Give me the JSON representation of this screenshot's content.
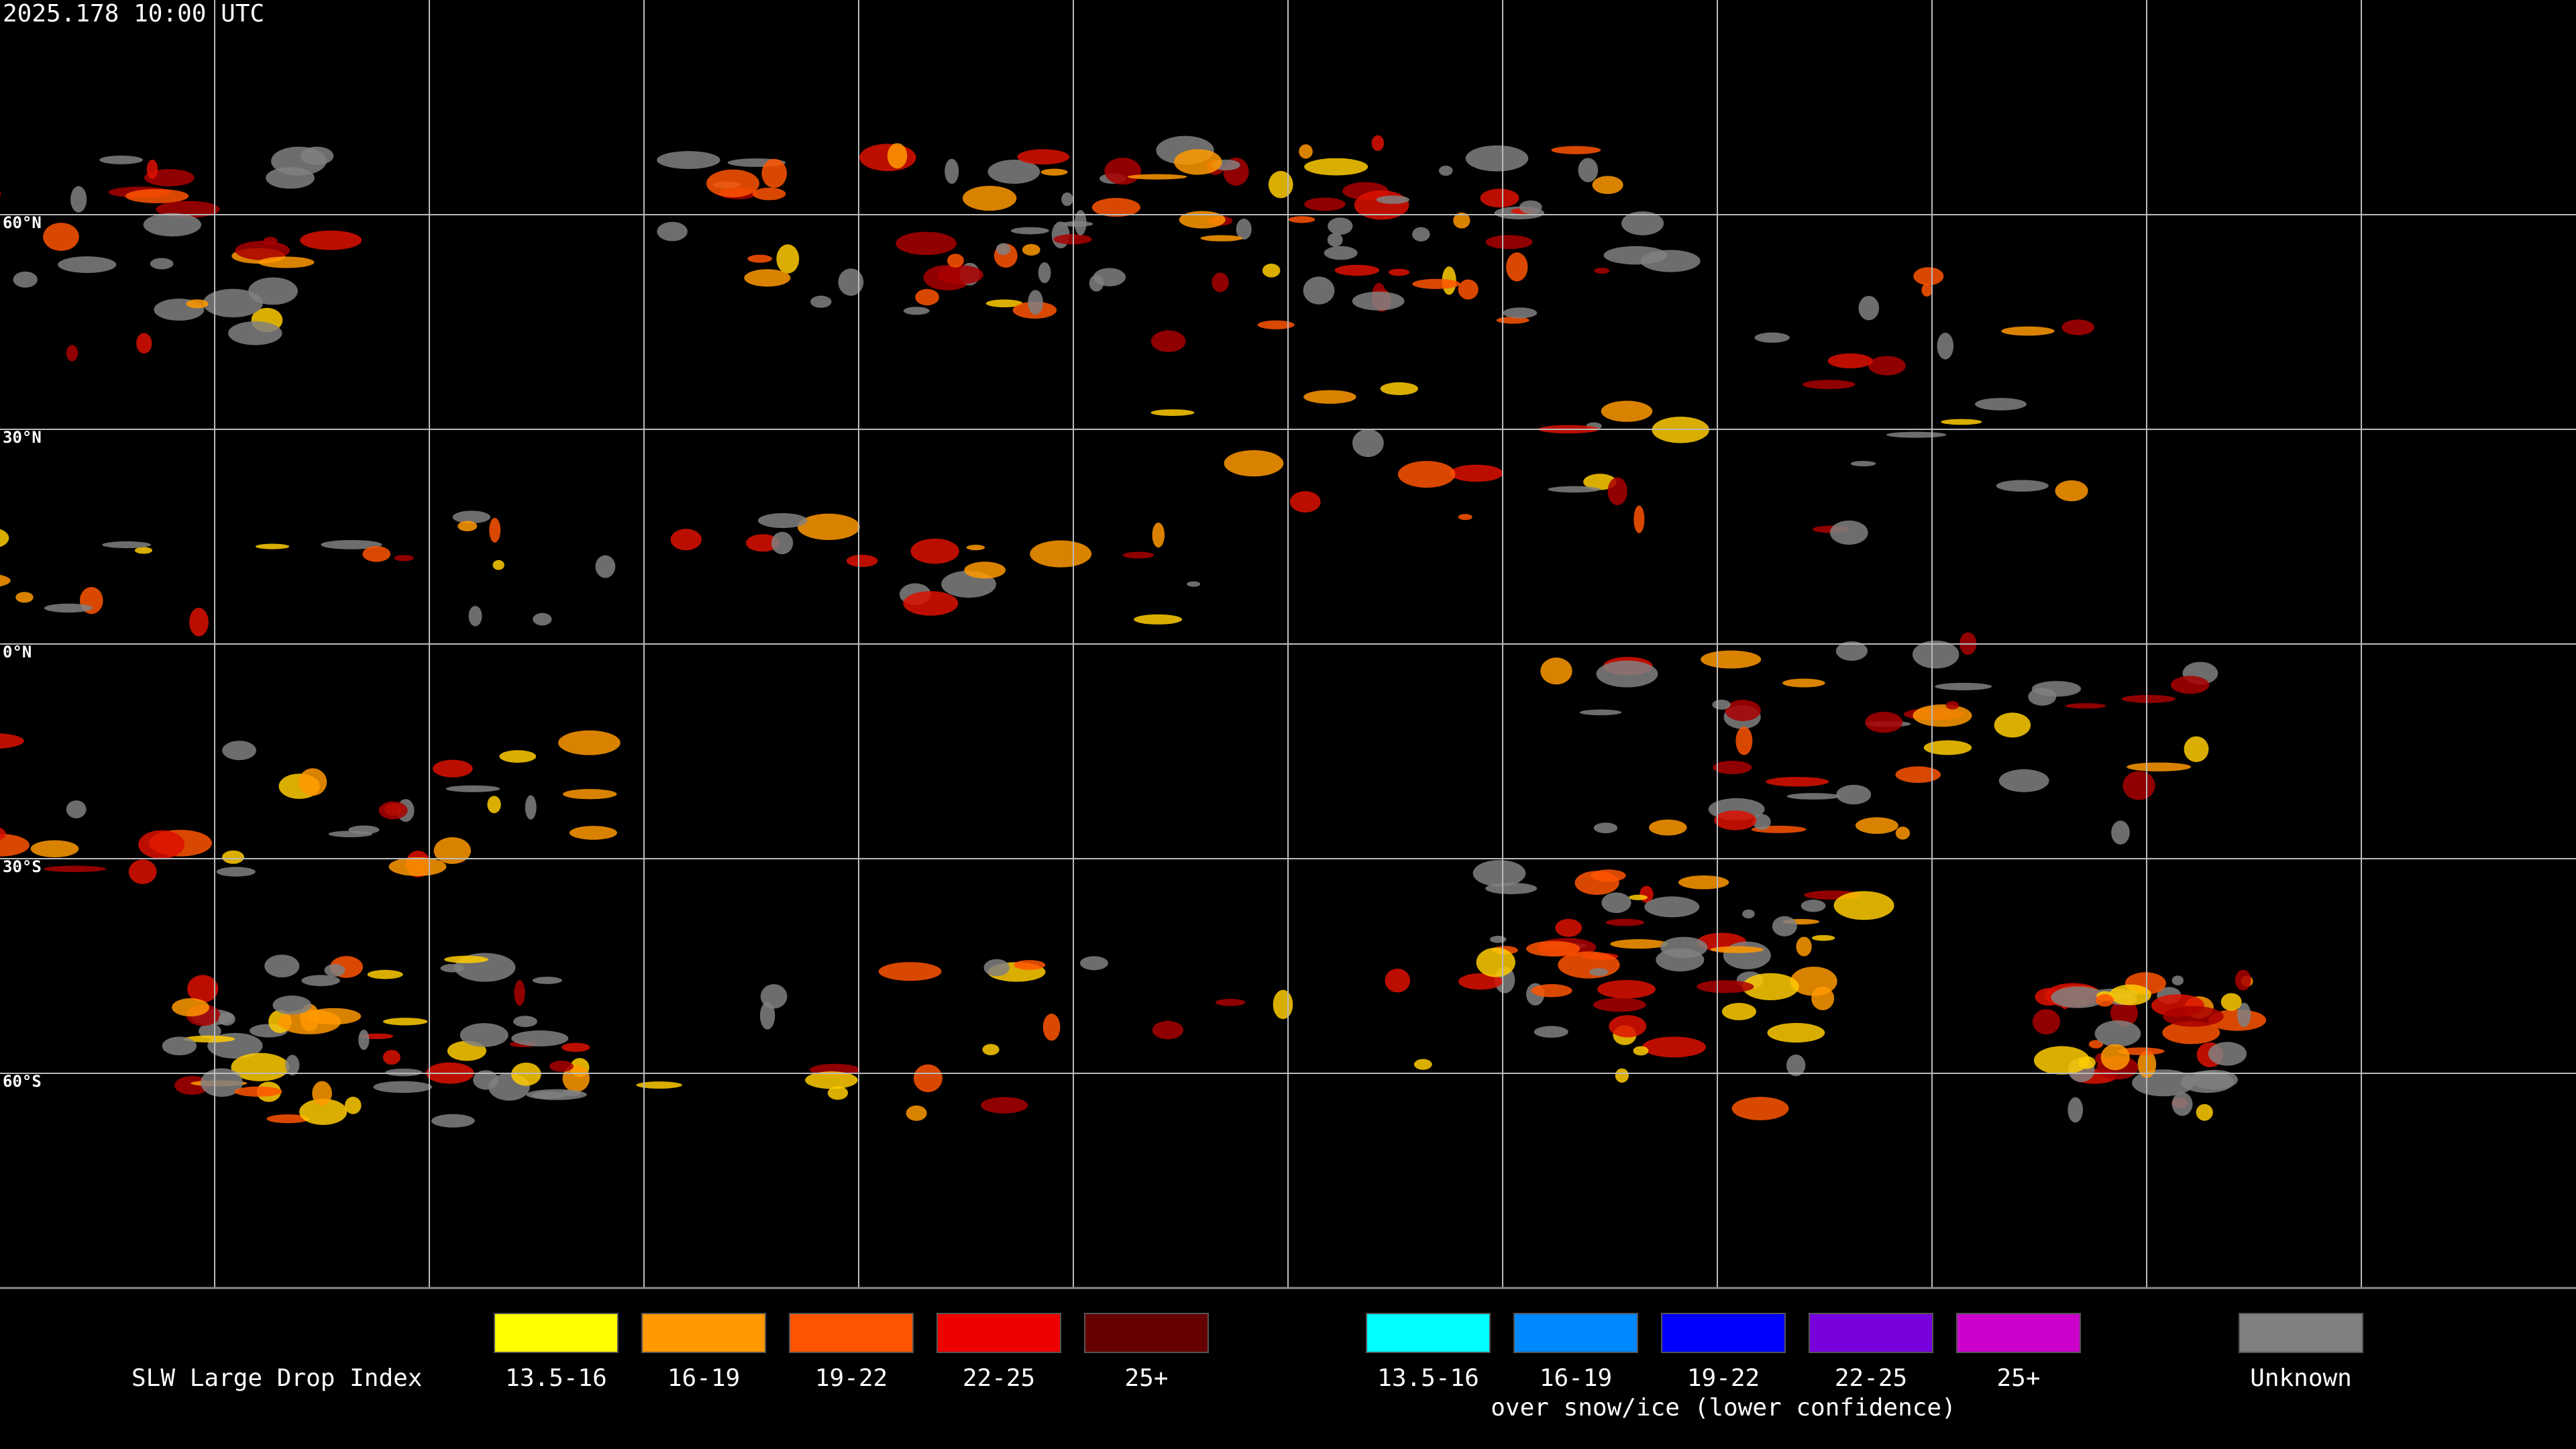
{
  "header": {
    "timestamp": "2025.178 10:00 UTC"
  },
  "map": {
    "latitude_labels": [
      "60°N",
      "30°N",
      "0°N",
      "30°S",
      "60°S"
    ]
  },
  "legend": {
    "title": "SLW Large Drop Index",
    "groups": [
      {
        "items": [
          {
            "label": "13.5-16",
            "color": "#ffff00"
          },
          {
            "label": "16-19",
            "color": "#ff9900"
          },
          {
            "label": "19-22",
            "color": "#ff5500"
          },
          {
            "label": "22-25",
            "color": "#ee0000"
          },
          {
            "label": "25+",
            "color": "#660000"
          }
        ]
      },
      {
        "caption": "over snow/ice (lower confidence)",
        "items": [
          {
            "label": "13.5-16",
            "color": "#00ffff"
          },
          {
            "label": "16-19",
            "color": "#0088ff"
          },
          {
            "label": "19-22",
            "color": "#0000ff"
          },
          {
            "label": "22-25",
            "color": "#7700dd"
          },
          {
            "label": "25+",
            "color": "#cc00cc"
          }
        ]
      },
      {
        "items": [
          {
            "label": "Unknown",
            "color": "#808080"
          }
        ]
      }
    ]
  }
}
